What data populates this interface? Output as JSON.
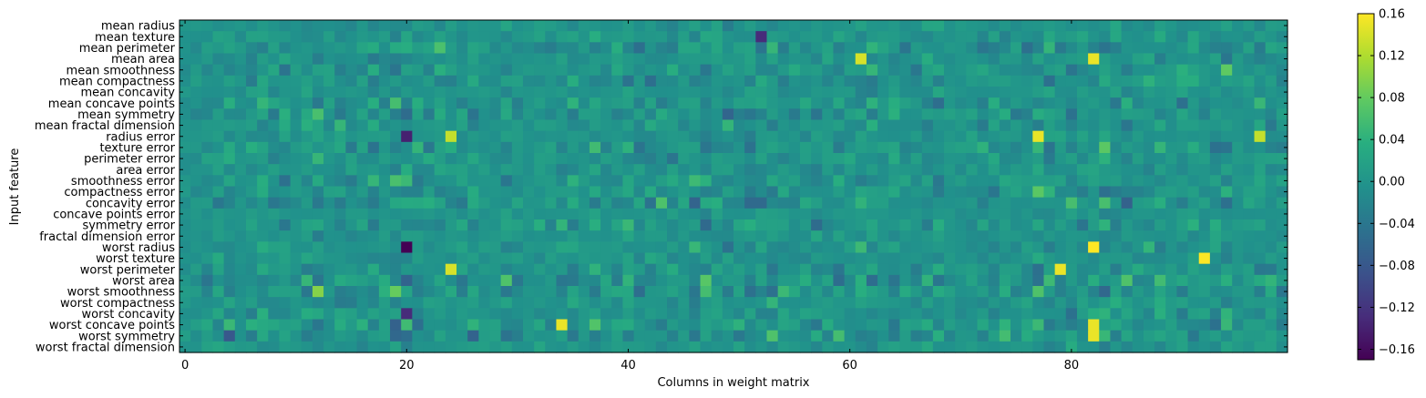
{
  "chart_data": {
    "type": "heatmap",
    "title": "",
    "xlabel": "Columns in weight matrix",
    "ylabel": "Input feature",
    "n_columns": 100,
    "xticks": [
      0,
      20,
      40,
      60,
      80
    ],
    "xtick_labels": [
      "0",
      "20",
      "40",
      "60",
      "80"
    ],
    "rows": [
      "mean radius",
      "mean texture",
      "mean perimeter",
      "mean area",
      "mean smoothness",
      "mean compactness",
      "mean concavity",
      "mean concave points",
      "mean symmetry",
      "mean fractal dimension",
      "radius error",
      "texture error",
      "perimeter error",
      "area error",
      "smoothness error",
      "compactness error",
      "concavity error",
      "concave points error",
      "symmetry error",
      "fractal dimension error",
      "worst radius",
      "worst texture",
      "worst perimeter",
      "worst area",
      "worst smoothness",
      "worst compactness",
      "worst concavity",
      "worst concave points",
      "worst symmetry",
      "worst fractal dimension"
    ],
    "colorbar": {
      "vmin": -0.17,
      "vmax": 0.16,
      "ticks": [
        -0.16,
        -0.12,
        -0.08,
        -0.04,
        0.0,
        0.04,
        0.08,
        0.12,
        0.16
      ],
      "tick_labels": [
        "−0.16",
        "−0.12",
        "−0.08",
        "−0.04",
        "0.00",
        "0.04",
        "0.08",
        "0.12",
        "0.16"
      ],
      "colormap": "viridis"
    },
    "grid": false,
    "highlights": [
      {
        "row": "worst radius",
        "column": 20,
        "value": -0.17
      },
      {
        "row": "radius error",
        "column": 20,
        "value": -0.14
      },
      {
        "row": "mean texture",
        "column": 52,
        "value": -0.13
      },
      {
        "row": "worst concavity",
        "column": 20,
        "value": -0.13
      },
      {
        "row": "mean area",
        "column": 82,
        "value": 0.15
      },
      {
        "row": "mean area",
        "column": 61,
        "value": 0.14
      },
      {
        "row": "radius error",
        "column": 77,
        "value": 0.15
      },
      {
        "row": "worst radius",
        "column": 82,
        "value": 0.16
      },
      {
        "row": "worst texture",
        "column": 92,
        "value": 0.16
      },
      {
        "row": "worst perimeter",
        "column": 79,
        "value": 0.15
      },
      {
        "row": "worst perimeter",
        "column": 24,
        "value": 0.14
      },
      {
        "row": "worst concave points",
        "column": 34,
        "value": 0.15
      },
      {
        "row": "worst concave points",
        "column": 82,
        "value": 0.15
      },
      {
        "row": "worst symmetry",
        "column": 82,
        "value": 0.15
      },
      {
        "row": "radius error",
        "column": 97,
        "value": 0.13
      },
      {
        "row": "radius error",
        "column": 24,
        "value": 0.13
      }
    ]
  }
}
